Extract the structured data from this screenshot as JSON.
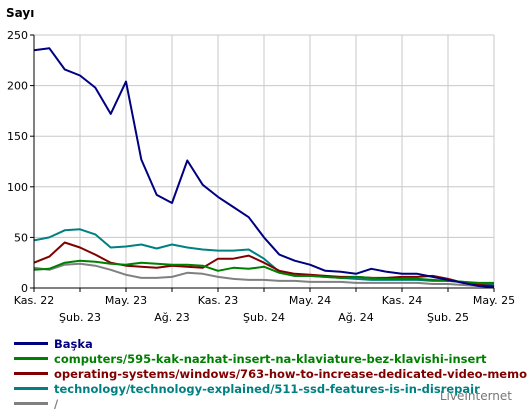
{
  "chart_data": {
    "type": "line",
    "ylabel": "Sayı",
    "ylim": [
      0,
      250
    ],
    "yticks": [
      0,
      50,
      100,
      150,
      200,
      250
    ],
    "xlim": [
      0,
      30
    ],
    "x_tick_labels_row1": [
      {
        "x": 0,
        "label": "Kas. 22"
      },
      {
        "x": 6,
        "label": "May. 23"
      },
      {
        "x": 12,
        "label": "Kas. 23"
      },
      {
        "x": 18,
        "label": "May. 24"
      },
      {
        "x": 24,
        "label": "Kas. 24"
      },
      {
        "x": 30,
        "label": "May. 25"
      }
    ],
    "x_tick_labels_row2": [
      {
        "x": 3,
        "label": "Şub. 23"
      },
      {
        "x": 9,
        "label": "Ağ. 23"
      },
      {
        "x": 15,
        "label": "Şub. 24"
      },
      {
        "x": 21,
        "label": "Ağ. 24"
      },
      {
        "x": 27,
        "label": "Şub. 25"
      }
    ],
    "grid": true,
    "series": [
      {
        "name": "Başka",
        "color": "#000080",
        "values": [
          235,
          237,
          216,
          210,
          198,
          172,
          204,
          127,
          92,
          84,
          126,
          102,
          90,
          80,
          70,
          50,
          33,
          27,
          23,
          17,
          16,
          14,
          19,
          16,
          14,
          14,
          11,
          8,
          5,
          2,
          1
        ]
      },
      {
        "name": "computers/595-kak-nazhat-insert-na-klaviature-bez-klavishi-insert",
        "color": "#008000",
        "values": [
          18,
          19,
          25,
          27,
          26,
          24,
          23,
          25,
          24,
          23,
          23,
          22,
          17,
          20,
          19,
          21,
          15,
          12,
          12,
          11,
          10,
          11,
          10,
          9,
          9,
          9,
          8,
          7,
          6,
          5,
          5
        ]
      },
      {
        "name": "operating-systems/windows/763-how-to-increase-dedicated-video-memo",
        "color": "#800000",
        "values": [
          25,
          31,
          45,
          40,
          33,
          25,
          22,
          21,
          20,
          22,
          21,
          20,
          29,
          29,
          32,
          25,
          17,
          14,
          13,
          12,
          11,
          11,
          10,
          10,
          11,
          11,
          12,
          9,
          5,
          3,
          2
        ]
      },
      {
        "name": "technology/technology-explained/511-ssd-features-is-in-disrepair",
        "color": "#008080",
        "values": [
          47,
          50,
          57,
          58,
          53,
          40,
          41,
          43,
          39,
          43,
          40,
          38,
          37,
          37,
          38,
          29,
          16,
          12,
          12,
          11,
          10,
          9,
          8,
          8,
          8,
          8,
          7,
          7,
          6,
          4,
          4
        ]
      },
      {
        "name": "/",
        "color": "#808080",
        "values": [
          20,
          18,
          23,
          24,
          22,
          18,
          13,
          10,
          10,
          11,
          15,
          14,
          11,
          9,
          8,
          8,
          7,
          7,
          6,
          6,
          6,
          5,
          5,
          5,
          5,
          5,
          4,
          4,
          3,
          2,
          2
        ]
      }
    ]
  },
  "credit": "LiveInternet"
}
